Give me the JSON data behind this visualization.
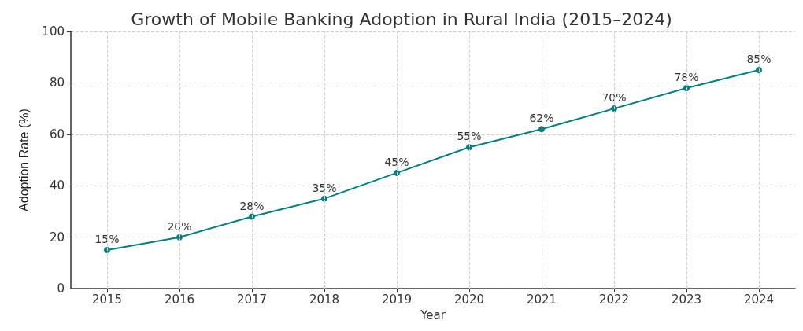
{
  "chart_data": {
    "type": "line",
    "title": "Growth of Mobile Banking Adoption in Rural India (2015–2024)",
    "xlabel": "Year",
    "ylabel": "Adoption Rate (%)",
    "categories": [
      "2015",
      "2016",
      "2017",
      "2018",
      "2019",
      "2020",
      "2021",
      "2022",
      "2023",
      "2024"
    ],
    "series": [
      {
        "color": "#008080",
        "values": [
          15,
          20,
          28,
          35,
          45,
          55,
          62,
          70,
          78,
          85
        ],
        "value_labels": [
          "15%",
          "20%",
          "28%",
          "35%",
          "45%",
          "55%",
          "62%",
          "70%",
          "78%",
          "85%"
        ]
      }
    ],
    "ylim": [
      0,
      100
    ],
    "yticks": [
      0,
      20,
      40,
      60,
      80,
      100
    ],
    "grid": true,
    "marker": "circle",
    "line_style": "solid"
  }
}
